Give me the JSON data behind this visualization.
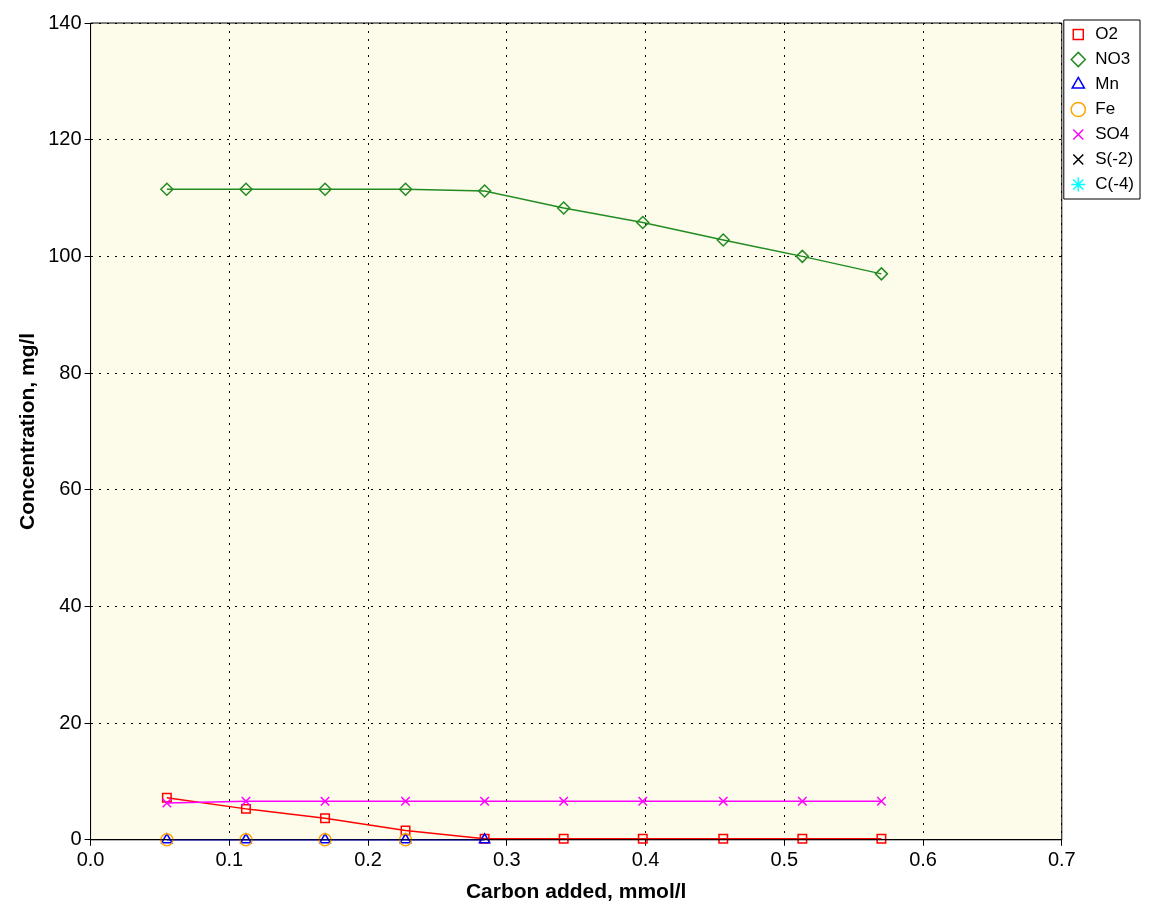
{
  "chart_data": {
    "type": "line",
    "xlabel": "Carbon added, mmol/l",
    "ylabel": "Concentration, mg/l",
    "x": [
      0.055,
      0.112,
      0.169,
      0.227,
      0.284,
      0.341,
      0.398,
      0.456,
      0.513,
      0.57
    ],
    "series": [
      {
        "name": "O2",
        "color": "#ff0000",
        "marker": "square",
        "values": [
          7.2,
          5.3,
          3.7,
          1.6,
          0.2,
          0.2,
          0.2,
          0.2,
          0.2,
          0.2
        ]
      },
      {
        "name": "NO3",
        "color": "#228b22",
        "marker": "diamond",
        "values": [
          111.5,
          111.5,
          111.5,
          111.5,
          111.2,
          108.3,
          105.8,
          102.8,
          100,
          97
        ]
      },
      {
        "name": "Mn",
        "color": "#0000ff",
        "marker": "triangle",
        "values": [
          0,
          0,
          0,
          0,
          0,
          null,
          null,
          null,
          null,
          null
        ]
      },
      {
        "name": "Fe",
        "type": "scatter",
        "color": "#ffa500",
        "marker": "circle",
        "values": [
          0,
          0,
          0,
          0,
          null,
          null,
          null,
          null,
          null,
          null
        ]
      },
      {
        "name": "SO4",
        "color": "#ff00ff",
        "marker": "cross",
        "values": [
          6.3,
          6.6,
          6.6,
          6.6,
          6.6,
          6.6,
          6.6,
          6.6,
          6.6,
          6.6
        ]
      },
      {
        "name": "S(-2)",
        "color": "#000000",
        "marker": "cross",
        "values": [
          null,
          null,
          null,
          null,
          null,
          null,
          null,
          null,
          null,
          null
        ]
      },
      {
        "name": "C(-4)",
        "color": "#00ffff",
        "marker": "star",
        "values": [
          null,
          null,
          null,
          null,
          null,
          null,
          null,
          null,
          null,
          null
        ]
      }
    ],
    "xlim": [
      0,
      0.7
    ],
    "xticks": [
      {
        "value": 0,
        "label": "0.0"
      },
      0.1,
      0.2,
      0.3,
      0.4,
      0.5,
      0.6,
      0.7
    ],
    "ylim": [
      0,
      140
    ],
    "yticks": [
      0,
      20,
      40,
      60,
      80,
      100,
      120,
      140
    ],
    "grid": true,
    "legend": "top right",
    "line_style": "solid"
  }
}
